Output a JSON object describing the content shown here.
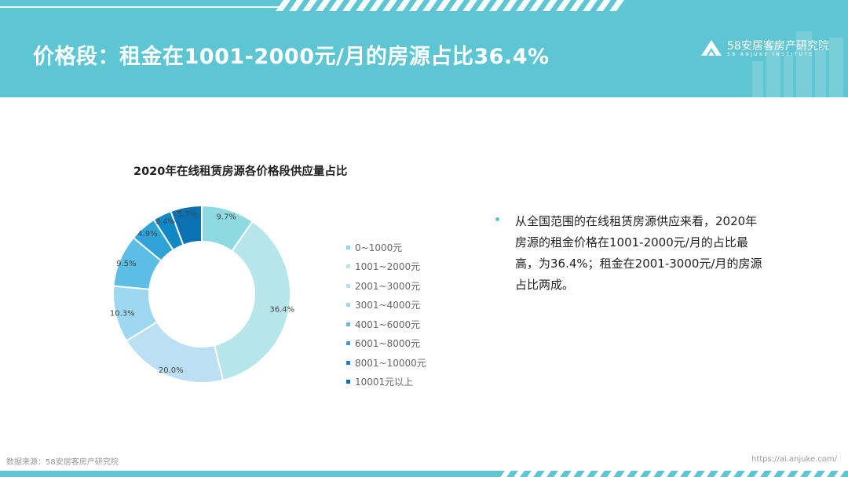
{
  "title": "价格段：租金在1001-2000元/月的房源占比36.4%",
  "brand": {
    "name": "58安居客房产研究院",
    "subtitle": "58 ANJUKE INSTITUTE",
    "accent_color": "#5ec5d3"
  },
  "chart_data": {
    "type": "pie",
    "style": "donut",
    "title": "2020年在线租赁房源各价格段供应量占比",
    "categories": [
      "0~1000元",
      "1001~2000元",
      "2001~3000元",
      "3001~4000元",
      "4001~6000元",
      "6001~8000元",
      "8001~10000元",
      "10001元以上"
    ],
    "values": [
      9.7,
      36.4,
      20.0,
      10.3,
      9.5,
      4.9,
      3.4,
      5.7
    ],
    "labels": [
      "9.7%",
      "36.4%",
      "20.0%",
      "10.3%",
      "9.5%",
      "4.9%",
      "3.4%",
      "5.7%"
    ],
    "colors": [
      "#8ddbe1",
      "#b6e6ea",
      "#bcdff3",
      "#9dd8f0",
      "#5cbde5",
      "#2fa3d6",
      "#0f88c6",
      "#0a72b3"
    ],
    "legend_position": "right"
  },
  "summary": {
    "text": "从全国范围的在线租赁房源供应来看，2020年房源的租金价格在1001-2000元/月的占比最高，为36.4%；租金在2001-3000元/月的房源占比两成。"
  },
  "footer": {
    "source": "数据来源：58安居客房产研究院",
    "url": "https://ai.anjuke.com/"
  }
}
